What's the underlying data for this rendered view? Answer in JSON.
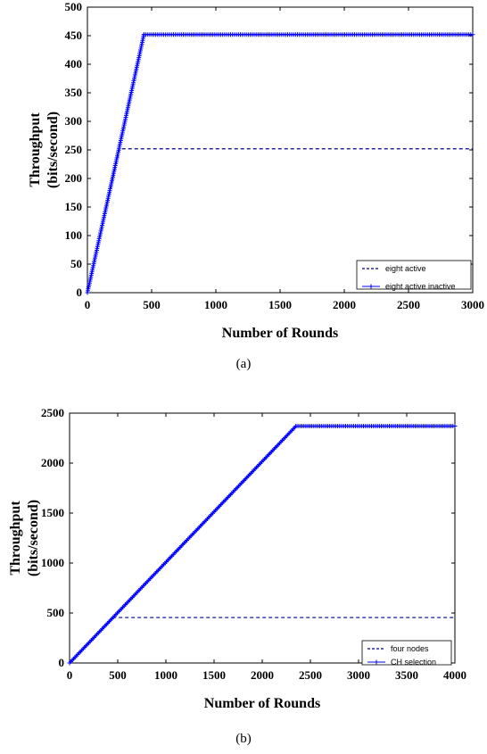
{
  "chart_data": [
    {
      "type": "line",
      "caption": "(a)",
      "xlabel": "Number of Rounds",
      "ylabel": "Throughput (bits/second)",
      "ylabel_lines": [
        "Throughput",
        "(bits/second)"
      ],
      "xlim": [
        0,
        3000
      ],
      "ylim": [
        0,
        500
      ],
      "xticks": [
        0,
        500,
        1000,
        1500,
        2000,
        2500,
        3000
      ],
      "yticks": [
        0,
        50,
        100,
        150,
        200,
        250,
        300,
        350,
        400,
        450,
        500
      ],
      "legend_position": "bottom-right",
      "grid": false,
      "series": [
        {
          "name": "eight active",
          "style": "dashed",
          "color": "#00008b",
          "x": [
            0,
            250,
            3000
          ],
          "y": [
            0,
            252,
            252
          ]
        },
        {
          "name": "eight active inactive",
          "style": "solid-plus-markers",
          "color": "#0000ff",
          "x": [
            0,
            440,
            3000
          ],
          "y": [
            0,
            452,
            452
          ]
        }
      ]
    },
    {
      "type": "line",
      "caption": "(b)",
      "xlabel": "Number of Rounds",
      "ylabel": "Throughput (bits/second)",
      "ylabel_lines": [
        "Throughput",
        "(bits/second)"
      ],
      "xlim": [
        0,
        4000
      ],
      "ylim": [
        0,
        2500
      ],
      "xticks": [
        0,
        500,
        1000,
        1500,
        2000,
        2500,
        3000,
        3500,
        4000
      ],
      "yticks": [
        0,
        500,
        1000,
        1500,
        2000,
        2500
      ],
      "legend_position": "bottom-right",
      "grid": false,
      "series": [
        {
          "name": "four nodes",
          "style": "dashed",
          "color": "#00008b",
          "x": [
            0,
            450,
            4000
          ],
          "y": [
            0,
            455,
            455
          ]
        },
        {
          "name": "CH selection",
          "style": "solid-plus-markers",
          "color": "#0000ff",
          "x": [
            0,
            2350,
            4000
          ],
          "y": [
            0,
            2370,
            2370
          ]
        }
      ]
    }
  ]
}
